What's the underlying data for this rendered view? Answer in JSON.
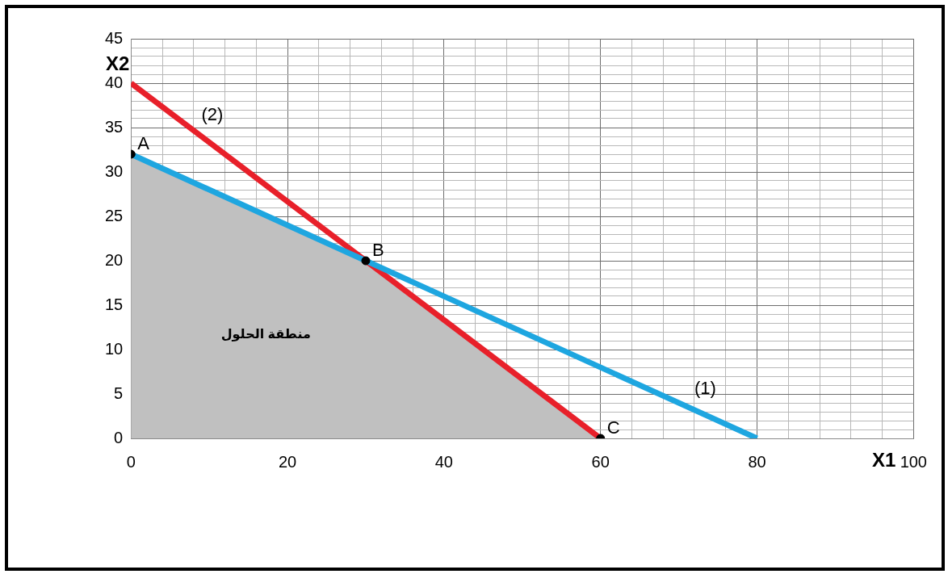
{
  "chart_data": {
    "type": "line",
    "xlabel": "X1",
    "ylabel": "X2",
    "legend": false,
    "grid": true,
    "xlim": [
      0,
      100
    ],
    "ylim": [
      0,
      45
    ],
    "xticks": [
      0,
      {
        "value": 4,
        "label": null
      },
      {
        "value": 8,
        "label": null
      },
      {
        "value": 12,
        "label": null
      },
      {
        "value": 16,
        "label": null
      },
      20,
      {
        "value": 24,
        "label": null
      },
      {
        "value": 28,
        "label": null
      },
      {
        "value": 32,
        "label": null
      },
      {
        "value": 36,
        "label": null
      },
      40,
      {
        "value": 44,
        "label": null
      },
      {
        "value": 48,
        "label": null
      },
      {
        "value": 52,
        "label": null
      },
      {
        "value": 56,
        "label": null
      },
      60,
      {
        "value": 64,
        "label": null
      },
      {
        "value": 68,
        "label": null
      },
      {
        "value": 72,
        "label": null
      },
      {
        "value": 76,
        "label": null
      },
      80,
      {
        "value": 84,
        "label": null
      },
      {
        "value": 88,
        "label": null
      },
      {
        "value": 92,
        "label": null
      },
      {
        "value": 96,
        "label": null
      },
      100
    ],
    "yticks": [
      0,
      {
        "value": 1,
        "label": null
      },
      {
        "value": 2,
        "label": null
      },
      {
        "value": 3,
        "label": null
      },
      {
        "value": 4,
        "label": null
      },
      5,
      {
        "value": 6,
        "label": null
      },
      {
        "value": 7,
        "label": null
      },
      {
        "value": 8,
        "label": null
      },
      {
        "value": 9,
        "label": null
      },
      10,
      {
        "value": 11,
        "label": null
      },
      {
        "value": 12,
        "label": null
      },
      {
        "value": 13,
        "label": null
      },
      {
        "value": 14,
        "label": null
      },
      15,
      {
        "value": 16,
        "label": null
      },
      {
        "value": 17,
        "label": null
      },
      {
        "value": 18,
        "label": null
      },
      {
        "value": 19,
        "label": null
      },
      20,
      {
        "value": 21,
        "label": null
      },
      {
        "value": 22,
        "label": null
      },
      {
        "value": 23,
        "label": null
      },
      {
        "value": 24,
        "label": null
      },
      25,
      {
        "value": 26,
        "label": null
      },
      {
        "value": 27,
        "label": null
      },
      {
        "value": 28,
        "label": null
      },
      {
        "value": 29,
        "label": null
      },
      30,
      {
        "value": 31,
        "label": null
      },
      {
        "value": 32,
        "label": null
      },
      {
        "value": 33,
        "label": null
      },
      {
        "value": 34,
        "label": null
      },
      35,
      {
        "value": 36,
        "label": null
      },
      {
        "value": 37,
        "label": null
      },
      {
        "value": 38,
        "label": null
      },
      {
        "value": 39,
        "label": null
      },
      40,
      {
        "value": 41,
        "label": null
      },
      {
        "value": 42,
        "label": null
      },
      {
        "value": 43,
        "label": null
      },
      {
        "value": 44,
        "label": null
      },
      45
    ],
    "series": [
      {
        "type": "area",
        "color": "#c0c0c0",
        "x": [
          0,
          0,
          30,
          60
        ],
        "values": [
          0,
          32,
          20,
          0
        ]
      },
      {
        "type": "line",
        "color": "#1ea6e0",
        "x": [
          0,
          80
        ],
        "values": [
          32,
          0
        ]
      },
      {
        "type": "line",
        "color": "#e8202a",
        "x": [
          0,
          60
        ],
        "values": [
          40,
          0
        ]
      },
      {
        "type": "scatter",
        "color": "#000000",
        "marker": "circle",
        "x": [
          0,
          30,
          60
        ],
        "values": [
          32,
          20,
          0
        ]
      }
    ],
    "annotations": [
      {
        "text": "A",
        "x": 0,
        "y": 32
      },
      {
        "text": "B",
        "x": 30,
        "y": 20
      },
      {
        "text": "C",
        "x": 60,
        "y": 0
      },
      {
        "text": "(1)",
        "x": 72,
        "y": 3.2
      },
      {
        "text": "(2)",
        "x": 9,
        "y": 34
      },
      "منطقة الحلول"
    ]
  }
}
